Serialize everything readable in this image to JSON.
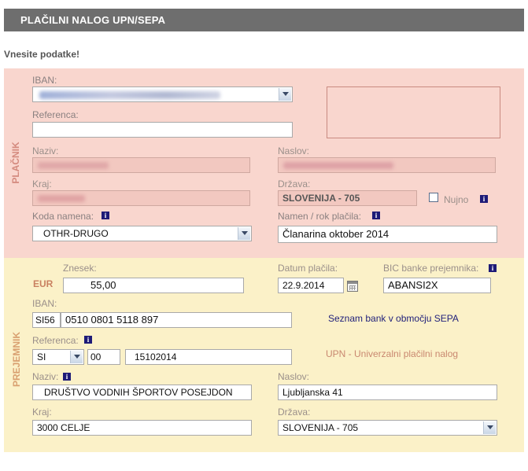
{
  "header": {
    "title": "PLAČILNI NALOG UPN/SEPA"
  },
  "instruction": "Vnesite podatke!",
  "colors": {
    "payer_bg": "#f9d6ce",
    "payee_bg": "#fbf1c8",
    "header_bg": "#6e6e6e",
    "info_icon": "#1e1b77"
  },
  "payer": {
    "section_label": "PLAČNIK",
    "iban": {
      "label": "IBAN:",
      "value": ""
    },
    "reference": {
      "label": "Referenca:",
      "value": ""
    },
    "name": {
      "label": "Naziv:",
      "value": ""
    },
    "address": {
      "label": "Naslov:",
      "value": ""
    },
    "city": {
      "label": "Kraj:",
      "value": ""
    },
    "country": {
      "label": "Država:",
      "value": "SLOVENIJA - 705"
    },
    "urgent": {
      "label": "Nujno",
      "checked": false
    },
    "purpose_code": {
      "label": "Koda namena:",
      "value": "OTHR-DRUGO",
      "icon": "info-icon"
    },
    "purpose": {
      "label": "Namen / rok plačila:",
      "value": "Članarina oktober 2014",
      "icon": "info-icon"
    }
  },
  "payee": {
    "section_label": "PREJEMNIK",
    "amount": {
      "label": "Znesek:",
      "currency": "EUR",
      "value": "55,00"
    },
    "payment_date": {
      "label": "Datum plačila:",
      "value": "22.9.2014"
    },
    "bic": {
      "label": "BIC banke prejemnika:",
      "value": "ABANSI2X",
      "icon": "info-icon"
    },
    "iban": {
      "label": "IBAN:",
      "prefix": "SI56",
      "value": "0510 0801 5118 897"
    },
    "bank_list_link": "Seznam bank v območju SEPA",
    "reference": {
      "label": "Referenca:",
      "model": "SI",
      "model_number": "00",
      "value": "15102014",
      "icon": "info-icon"
    },
    "upn_link": "UPN - Univerzalni plačilni nalog",
    "name": {
      "label": "Naziv:",
      "value": "DRUŠTVO VODNIH ŠPORTOV POSEJDON",
      "icon": "info-icon"
    },
    "address": {
      "label": "Naslov:",
      "value": "Ljubljanska 41"
    },
    "city": {
      "label": "Kraj:",
      "value": "3000 CELJE"
    },
    "country": {
      "label": "Država:",
      "value": "SLOVENIJA - 705"
    }
  }
}
